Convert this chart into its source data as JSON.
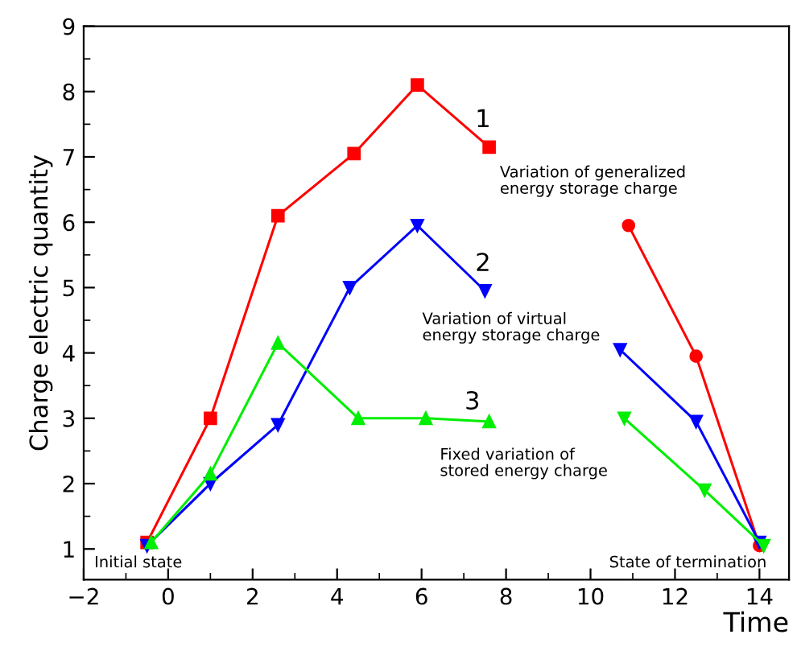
{
  "chart_data": {
    "type": "line",
    "xlabel": "Time",
    "ylabel": "Charge electric quantity",
    "xlim": [
      -2,
      14.7
    ],
    "ylim": [
      0.53,
      9
    ],
    "xticks": [
      -2,
      0,
      2,
      4,
      6,
      8,
      10,
      12,
      14
    ],
    "yticks": [
      1,
      2,
      3,
      4,
      5,
      6,
      7,
      8,
      9
    ],
    "grid": false,
    "legend": false,
    "series": [
      {
        "color": "#ff0000",
        "marker": "square",
        "x": [
          -0.5,
          1,
          2.6,
          4.4,
          5.9,
          7.6
        ],
        "values": [
          1.1,
          3.0,
          6.1,
          7.05,
          8.1,
          7.15
        ]
      },
      {
        "color": "#ff0000",
        "marker": "circle",
        "x": [
          10.9,
          12.5,
          14
        ],
        "values": [
          5.95,
          3.95,
          1.05
        ]
      },
      {
        "color": "#0000ff",
        "marker": "triangle_down",
        "x": [
          -0.5,
          1,
          2.6,
          4.3,
          5.9,
          7.5
        ],
        "values": [
          1.05,
          2.0,
          2.9,
          5.0,
          5.95,
          4.95
        ]
      },
      {
        "color": "#0000ff",
        "marker": "triangle_down",
        "x": [
          10.7,
          12.5,
          14
        ],
        "values": [
          4.05,
          2.95,
          1.1
        ]
      },
      {
        "color": "#00ee00",
        "marker": "triangle",
        "x": [
          -0.4,
          1,
          2.6,
          4.5,
          6.1,
          7.6
        ],
        "values": [
          1.1,
          2.15,
          4.15,
          3.0,
          3.0,
          2.95
        ]
      },
      {
        "color": "#00ee00",
        "marker": "triangle_down",
        "x": [
          10.8,
          12.7,
          14.1
        ],
        "values": [
          3.0,
          1.9,
          1.05
        ]
      }
    ],
    "annotations": [
      "1",
      "Variation of generalized\nenergy storage charge",
      "2",
      "Variation of virtual\nenergy storage charge",
      "3",
      "Fixed variation of\nstored energy charge",
      "Initial state",
      "State of termination"
    ]
  }
}
